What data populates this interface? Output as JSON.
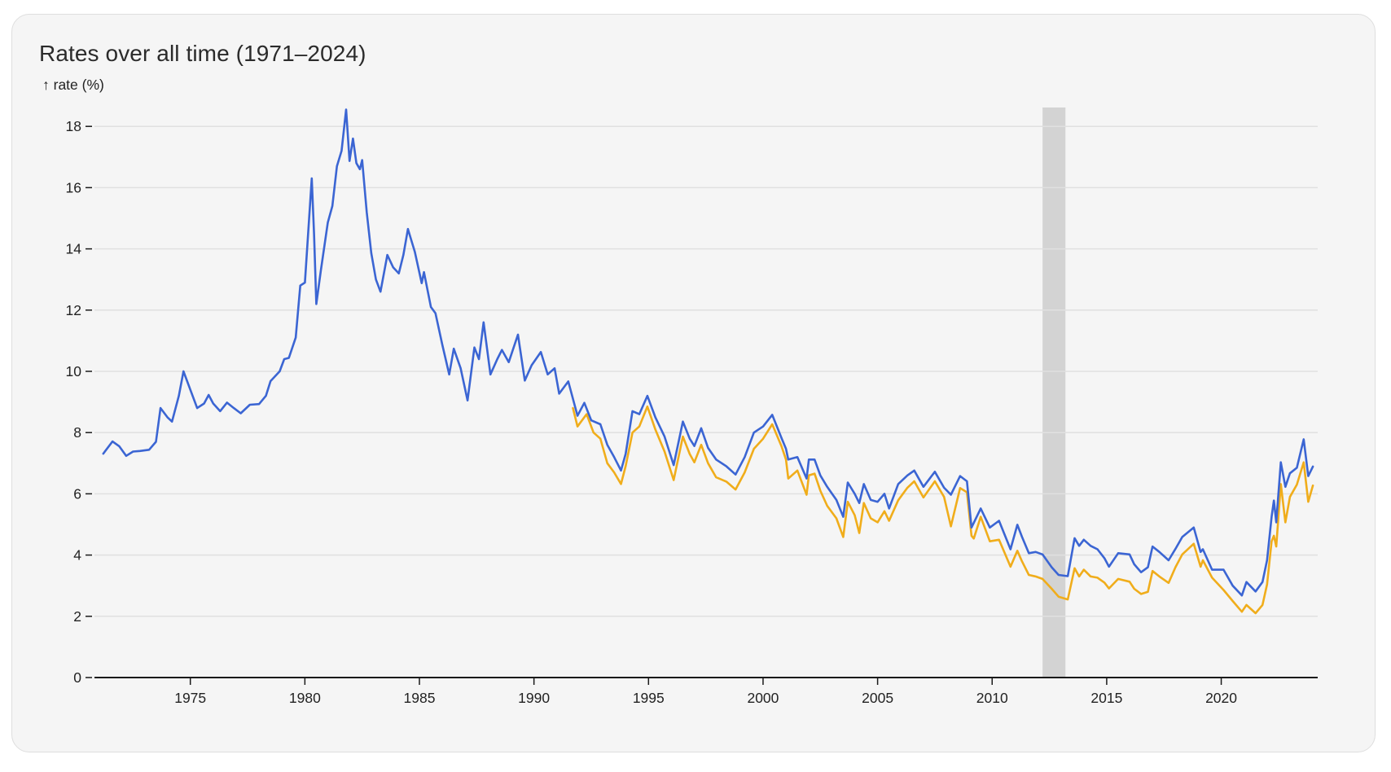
{
  "title": "Rates over all time (1971–2024)",
  "y_axis_label": "↑ rate (%)",
  "colors": {
    "card_background": "#f5f5f5",
    "gridline": "#e0e0e0",
    "axis": "#1a1a1a",
    "highlight_band": "#d3d3d3",
    "series_30yr": "#3b65d3",
    "series_15yr": "#f0ad1b"
  },
  "chart_data": {
    "type": "line",
    "title": "Rates over all time (1971–2024)",
    "xlabel": "",
    "ylabel": "↑ rate (%)",
    "xlim": [
      1970.8,
      2024.2
    ],
    "ylim": [
      0,
      18.6
    ],
    "x_ticks": [
      1975,
      1980,
      1985,
      1990,
      1995,
      2000,
      2005,
      2010,
      2015,
      2020
    ],
    "y_ticks": [
      0,
      2,
      4,
      6,
      8,
      10,
      12,
      14,
      16,
      18
    ],
    "grid": "horizontal",
    "legend": "none",
    "highlight_band": {
      "x0": 2012.2,
      "x1": 2013.2
    },
    "series": [
      {
        "name": "blue series",
        "color": "#3b65d3",
        "points": [
          [
            1971.2,
            7.31
          ],
          [
            1971.6,
            7.71
          ],
          [
            1971.9,
            7.55
          ],
          [
            1972.2,
            7.24
          ],
          [
            1972.5,
            7.38
          ],
          [
            1972.8,
            7.4
          ],
          [
            1973.2,
            7.44
          ],
          [
            1973.5,
            7.7
          ],
          [
            1973.7,
            8.8
          ],
          [
            1974.0,
            8.5
          ],
          [
            1974.2,
            8.36
          ],
          [
            1974.5,
            9.2
          ],
          [
            1974.7,
            10.0
          ],
          [
            1975.0,
            9.4
          ],
          [
            1975.3,
            8.8
          ],
          [
            1975.6,
            8.95
          ],
          [
            1975.8,
            9.23
          ],
          [
            1976.0,
            8.95
          ],
          [
            1976.3,
            8.7
          ],
          [
            1976.6,
            8.98
          ],
          [
            1976.9,
            8.8
          ],
          [
            1977.2,
            8.63
          ],
          [
            1977.6,
            8.91
          ],
          [
            1978.0,
            8.93
          ],
          [
            1978.3,
            9.2
          ],
          [
            1978.5,
            9.68
          ],
          [
            1978.9,
            10.0
          ],
          [
            1979.1,
            10.4
          ],
          [
            1979.3,
            10.44
          ],
          [
            1979.6,
            11.1
          ],
          [
            1979.8,
            12.8
          ],
          [
            1980.0,
            12.9
          ],
          [
            1980.3,
            16.3
          ],
          [
            1980.4,
            14.5
          ],
          [
            1980.5,
            12.2
          ],
          [
            1980.7,
            13.3
          ],
          [
            1981.0,
            14.86
          ],
          [
            1981.2,
            15.4
          ],
          [
            1981.4,
            16.7
          ],
          [
            1981.6,
            17.2
          ],
          [
            1981.8,
            18.55
          ],
          [
            1981.95,
            16.87
          ],
          [
            1982.1,
            17.6
          ],
          [
            1982.25,
            16.8
          ],
          [
            1982.4,
            16.6
          ],
          [
            1982.5,
            16.9
          ],
          [
            1982.7,
            15.2
          ],
          [
            1982.9,
            13.86
          ],
          [
            1983.1,
            13.0
          ],
          [
            1983.3,
            12.6
          ],
          [
            1983.6,
            13.8
          ],
          [
            1983.85,
            13.4
          ],
          [
            1984.1,
            13.2
          ],
          [
            1984.3,
            13.8
          ],
          [
            1984.5,
            14.65
          ],
          [
            1984.8,
            13.9
          ],
          [
            1985.1,
            12.88
          ],
          [
            1985.2,
            13.24
          ],
          [
            1985.5,
            12.1
          ],
          [
            1985.7,
            11.9
          ],
          [
            1986.0,
            10.87
          ],
          [
            1986.3,
            9.9
          ],
          [
            1986.5,
            10.74
          ],
          [
            1986.8,
            10.1
          ],
          [
            1987.1,
            9.05
          ],
          [
            1987.4,
            10.78
          ],
          [
            1987.6,
            10.4
          ],
          [
            1987.8,
            11.6
          ],
          [
            1988.1,
            9.9
          ],
          [
            1988.4,
            10.4
          ],
          [
            1988.6,
            10.7
          ],
          [
            1988.9,
            10.3
          ],
          [
            1989.3,
            11.2
          ],
          [
            1989.6,
            9.7
          ],
          [
            1989.9,
            10.2
          ],
          [
            1990.3,
            10.63
          ],
          [
            1990.6,
            9.9
          ],
          [
            1990.9,
            10.1
          ],
          [
            1991.1,
            9.27
          ],
          [
            1991.5,
            9.67
          ],
          [
            1991.9,
            8.55
          ],
          [
            1992.2,
            8.97
          ],
          [
            1992.5,
            8.4
          ],
          [
            1992.9,
            8.27
          ],
          [
            1993.2,
            7.6
          ],
          [
            1993.5,
            7.2
          ],
          [
            1993.8,
            6.76
          ],
          [
            1994.0,
            7.3
          ],
          [
            1994.3,
            8.7
          ],
          [
            1994.6,
            8.6
          ],
          [
            1994.95,
            9.2
          ],
          [
            1995.3,
            8.5
          ],
          [
            1995.7,
            7.87
          ],
          [
            1996.1,
            6.94
          ],
          [
            1996.5,
            8.36
          ],
          [
            1996.8,
            7.8
          ],
          [
            1997.0,
            7.56
          ],
          [
            1997.3,
            8.14
          ],
          [
            1997.6,
            7.5
          ],
          [
            1997.95,
            7.12
          ],
          [
            1998.4,
            6.9
          ],
          [
            1998.8,
            6.63
          ],
          [
            1999.2,
            7.2
          ],
          [
            1999.6,
            8.0
          ],
          [
            2000.0,
            8.2
          ],
          [
            2000.4,
            8.58
          ],
          [
            2000.8,
            7.83
          ],
          [
            2001.0,
            7.47
          ],
          [
            2001.1,
            7.12
          ],
          [
            2001.5,
            7.2
          ],
          [
            2001.9,
            6.5
          ],
          [
            2002.0,
            7.12
          ],
          [
            2002.25,
            7.12
          ],
          [
            2002.5,
            6.6
          ],
          [
            2002.8,
            6.23
          ],
          [
            2003.2,
            5.8
          ],
          [
            2003.5,
            5.25
          ],
          [
            2003.7,
            6.37
          ],
          [
            2004.0,
            6.0
          ],
          [
            2004.2,
            5.7
          ],
          [
            2004.4,
            6.32
          ],
          [
            2004.7,
            5.8
          ],
          [
            2005.0,
            5.74
          ],
          [
            2005.3,
            6.0
          ],
          [
            2005.5,
            5.52
          ],
          [
            2005.9,
            6.32
          ],
          [
            2006.3,
            6.6
          ],
          [
            2006.6,
            6.76
          ],
          [
            2007.0,
            6.23
          ],
          [
            2007.5,
            6.72
          ],
          [
            2007.9,
            6.2
          ],
          [
            2008.2,
            5.97
          ],
          [
            2008.6,
            6.58
          ],
          [
            2008.9,
            6.41
          ],
          [
            2009.1,
            4.9
          ],
          [
            2009.5,
            5.52
          ],
          [
            2009.9,
            4.9
          ],
          [
            2010.3,
            5.12
          ],
          [
            2010.8,
            4.19
          ],
          [
            2011.1,
            4.99
          ],
          [
            2011.3,
            4.6
          ],
          [
            2011.6,
            4.06
          ],
          [
            2011.9,
            4.1
          ],
          [
            2012.2,
            4.02
          ],
          [
            2012.6,
            3.6
          ],
          [
            2012.9,
            3.35
          ],
          [
            2013.3,
            3.31
          ],
          [
            2013.6,
            4.55
          ],
          [
            2013.8,
            4.3
          ],
          [
            2014.0,
            4.5
          ],
          [
            2014.3,
            4.3
          ],
          [
            2014.6,
            4.19
          ],
          [
            2014.9,
            3.9
          ],
          [
            2015.1,
            3.62
          ],
          [
            2015.5,
            4.06
          ],
          [
            2016.0,
            4.02
          ],
          [
            2016.2,
            3.7
          ],
          [
            2016.5,
            3.44
          ],
          [
            2016.8,
            3.6
          ],
          [
            2017.0,
            4.28
          ],
          [
            2017.3,
            4.1
          ],
          [
            2017.7,
            3.83
          ],
          [
            2018.0,
            4.2
          ],
          [
            2018.3,
            4.59
          ],
          [
            2018.8,
            4.9
          ],
          [
            2019.1,
            4.1
          ],
          [
            2019.2,
            4.19
          ],
          [
            2019.6,
            3.52
          ],
          [
            2020.1,
            3.52
          ],
          [
            2020.5,
            3.0
          ],
          [
            2020.9,
            2.68
          ],
          [
            2021.1,
            3.12
          ],
          [
            2021.5,
            2.81
          ],
          [
            2021.8,
            3.12
          ],
          [
            2022.0,
            3.83
          ],
          [
            2022.2,
            5.25
          ],
          [
            2022.3,
            5.78
          ],
          [
            2022.4,
            5.07
          ],
          [
            2022.6,
            7.03
          ],
          [
            2022.8,
            6.23
          ],
          [
            2023.0,
            6.67
          ],
          [
            2023.3,
            6.85
          ],
          [
            2023.6,
            7.78
          ],
          [
            2023.8,
            6.58
          ],
          [
            2024.0,
            6.89
          ]
        ]
      },
      {
        "name": "yellow series",
        "color": "#f0ad1b",
        "points": [
          [
            1991.7,
            8.8
          ],
          [
            1991.9,
            8.2
          ],
          [
            1992.3,
            8.6
          ],
          [
            1992.6,
            8.0
          ],
          [
            1992.9,
            7.8
          ],
          [
            1993.2,
            7.0
          ],
          [
            1993.5,
            6.7
          ],
          [
            1993.8,
            6.32
          ],
          [
            1994.0,
            6.9
          ],
          [
            1994.3,
            8.0
          ],
          [
            1994.6,
            8.2
          ],
          [
            1994.95,
            8.85
          ],
          [
            1995.3,
            8.1
          ],
          [
            1995.7,
            7.38
          ],
          [
            1996.1,
            6.45
          ],
          [
            1996.5,
            7.87
          ],
          [
            1996.8,
            7.3
          ],
          [
            1997.0,
            7.03
          ],
          [
            1997.3,
            7.6
          ],
          [
            1997.6,
            7.0
          ],
          [
            1997.95,
            6.54
          ],
          [
            1998.4,
            6.4
          ],
          [
            1998.8,
            6.14
          ],
          [
            1999.2,
            6.7
          ],
          [
            1999.6,
            7.47
          ],
          [
            2000.0,
            7.8
          ],
          [
            2000.4,
            8.27
          ],
          [
            2000.8,
            7.56
          ],
          [
            2001.0,
            7.12
          ],
          [
            2001.1,
            6.5
          ],
          [
            2001.5,
            6.76
          ],
          [
            2001.9,
            5.97
          ],
          [
            2002.0,
            6.6
          ],
          [
            2002.25,
            6.66
          ],
          [
            2002.5,
            6.1
          ],
          [
            2002.8,
            5.61
          ],
          [
            2003.2,
            5.2
          ],
          [
            2003.5,
            4.59
          ],
          [
            2003.7,
            5.74
          ],
          [
            2004.0,
            5.3
          ],
          [
            2004.2,
            4.72
          ],
          [
            2004.4,
            5.7
          ],
          [
            2004.7,
            5.2
          ],
          [
            2005.0,
            5.07
          ],
          [
            2005.3,
            5.43
          ],
          [
            2005.5,
            5.12
          ],
          [
            2005.9,
            5.79
          ],
          [
            2006.3,
            6.2
          ],
          [
            2006.6,
            6.41
          ],
          [
            2007.0,
            5.88
          ],
          [
            2007.5,
            6.41
          ],
          [
            2007.9,
            5.9
          ],
          [
            2008.2,
            4.94
          ],
          [
            2008.6,
            6.19
          ],
          [
            2008.9,
            6.05
          ],
          [
            2009.1,
            4.63
          ],
          [
            2009.2,
            4.54
          ],
          [
            2009.5,
            5.25
          ],
          [
            2009.9,
            4.45
          ],
          [
            2010.3,
            4.5
          ],
          [
            2010.8,
            3.62
          ],
          [
            2011.1,
            4.14
          ],
          [
            2011.3,
            3.8
          ],
          [
            2011.6,
            3.35
          ],
          [
            2011.9,
            3.3
          ],
          [
            2012.2,
            3.22
          ],
          [
            2012.6,
            2.9
          ],
          [
            2012.9,
            2.64
          ],
          [
            2013.3,
            2.55
          ],
          [
            2013.6,
            3.57
          ],
          [
            2013.8,
            3.3
          ],
          [
            2014.0,
            3.52
          ],
          [
            2014.3,
            3.3
          ],
          [
            2014.6,
            3.26
          ],
          [
            2014.9,
            3.1
          ],
          [
            2015.1,
            2.91
          ],
          [
            2015.5,
            3.22
          ],
          [
            2016.0,
            3.13
          ],
          [
            2016.2,
            2.9
          ],
          [
            2016.5,
            2.73
          ],
          [
            2016.8,
            2.8
          ],
          [
            2017.0,
            3.48
          ],
          [
            2017.3,
            3.3
          ],
          [
            2017.7,
            3.09
          ],
          [
            2018.0,
            3.6
          ],
          [
            2018.3,
            4.02
          ],
          [
            2018.8,
            4.37
          ],
          [
            2019.1,
            3.62
          ],
          [
            2019.2,
            3.83
          ],
          [
            2019.6,
            3.26
          ],
          [
            2020.1,
            2.86
          ],
          [
            2020.5,
            2.5
          ],
          [
            2020.9,
            2.15
          ],
          [
            2021.1,
            2.37
          ],
          [
            2021.5,
            2.1
          ],
          [
            2021.8,
            2.37
          ],
          [
            2022.0,
            3.04
          ],
          [
            2022.2,
            4.45
          ],
          [
            2022.3,
            4.63
          ],
          [
            2022.4,
            4.28
          ],
          [
            2022.6,
            6.32
          ],
          [
            2022.8,
            5.07
          ],
          [
            2023.0,
            5.9
          ],
          [
            2023.3,
            6.3
          ],
          [
            2023.6,
            7.03
          ],
          [
            2023.8,
            5.74
          ],
          [
            2024.0,
            6.27
          ]
        ]
      }
    ]
  }
}
